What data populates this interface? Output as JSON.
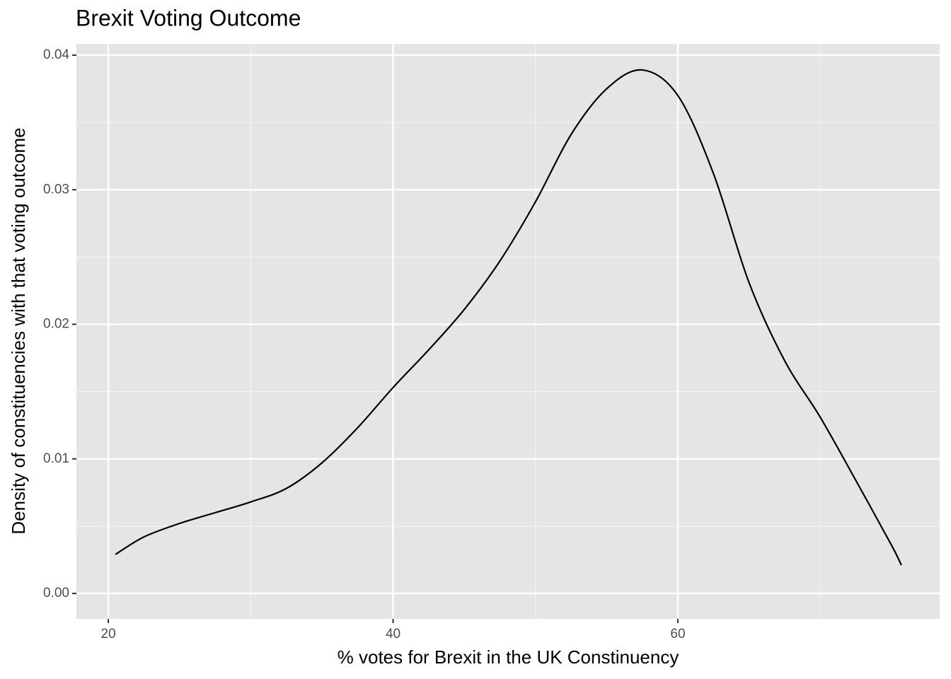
{
  "chart_data": {
    "type": "line",
    "title": "Brexit Voting Outcome",
    "x_label": "% votes for Brexit in the UK Constinuency",
    "y_label": "Density of constituencies with that voting outcome",
    "x": [
      20.5,
      22.5,
      25,
      27.5,
      30,
      32.5,
      35,
      37.5,
      40,
      42.5,
      45,
      47.5,
      50,
      52.5,
      55,
      57.5,
      60,
      62.5,
      65,
      67.5,
      70,
      72.5,
      75,
      75.7
    ],
    "values": [
      0.0029,
      0.0042,
      0.0052,
      0.006,
      0.0068,
      0.0078,
      0.0097,
      0.0123,
      0.0153,
      0.0181,
      0.0211,
      0.0247,
      0.0291,
      0.0341,
      0.0375,
      0.0389,
      0.037,
      0.0312,
      0.0231,
      0.0173,
      0.0131,
      0.0084,
      0.0036,
      0.0021
    ],
    "color": "#000000",
    "xlim": [
      17.76,
      78.39
    ],
    "ylim": [
      -0.00189,
      0.04084
    ],
    "xticks": [
      20,
      40,
      60
    ],
    "yticks": [
      {
        "value": 0,
        "label": "0.00"
      },
      0.01,
      0.02,
      0.03,
      0.04
    ],
    "xminor": [
      30,
      50,
      70
    ],
    "yminor": [
      0.005,
      0.015,
      0.025,
      0.035
    ],
    "grid": true
  }
}
